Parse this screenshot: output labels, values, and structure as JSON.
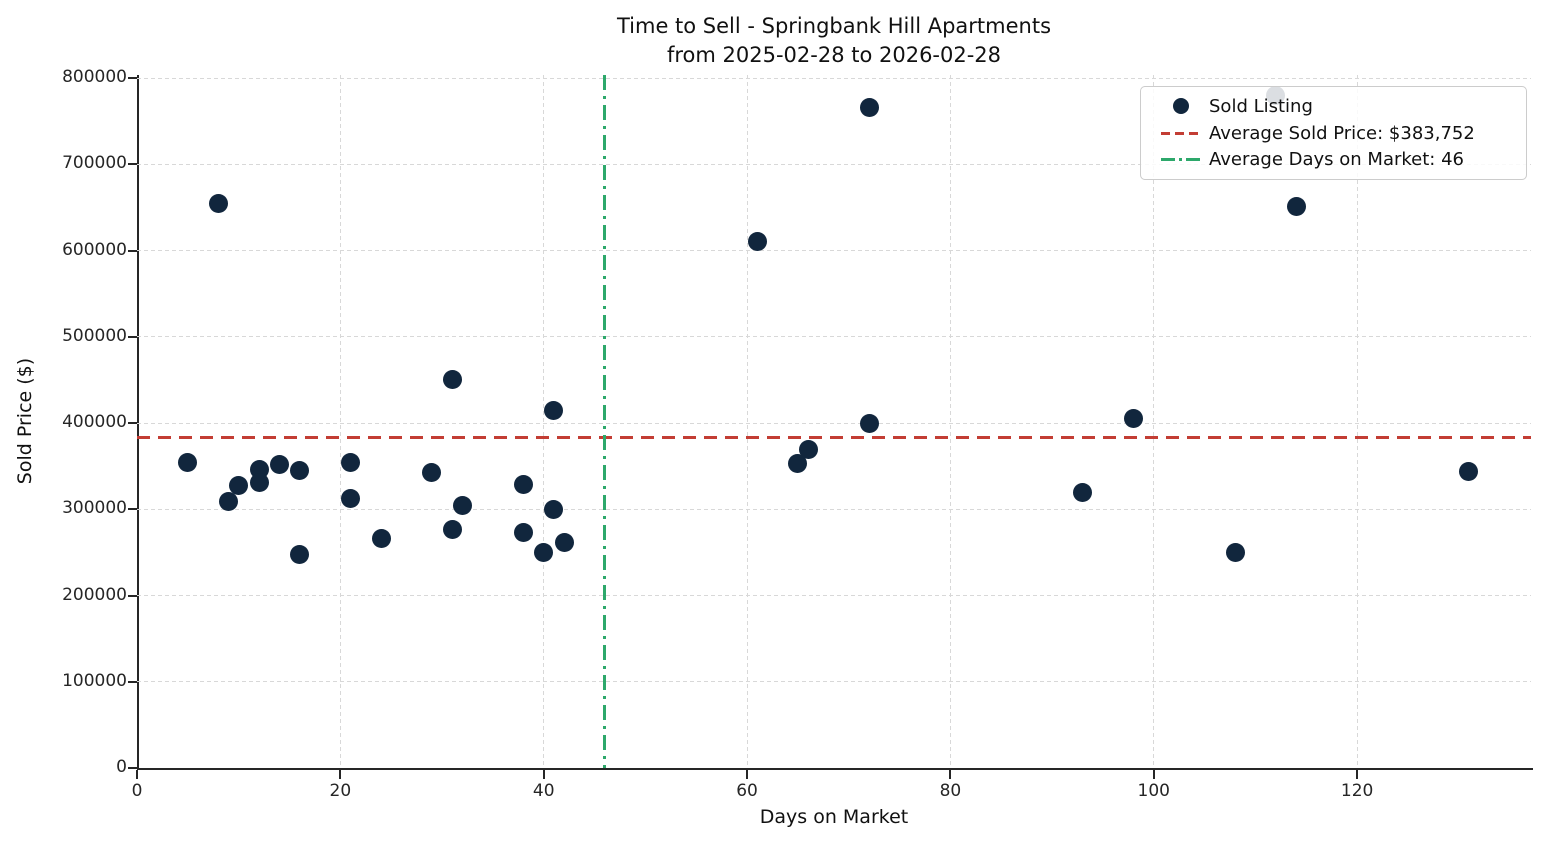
{
  "title": {
    "line1": "Time to Sell - Springbank Hill Apartments",
    "line2": "from 2025-02-28 to 2026-02-28"
  },
  "axes": {
    "xlabel": "Days on Market",
    "ylabel": "Sold Price ($)"
  },
  "legend": {
    "sold_listing": "Sold Listing",
    "avg_price": "Average Sold Price: $383,752",
    "avg_days": "Average Days on Market: 46"
  },
  "colors": {
    "dot": "#11263d",
    "avg_price_line": "#c33d34",
    "avg_days_line": "#2da86b",
    "grid": "#d8d8d8",
    "spine": "#262626"
  },
  "chart_data": {
    "type": "scatter",
    "title": "Time to Sell - Springbank Hill Apartments\nfrom 2025-02-28 to 2026-02-28",
    "xlabel": "Days on Market",
    "ylabel": "Sold Price ($)",
    "xlim": [
      0,
      137.1
    ],
    "ylim": [
      0,
      803500
    ],
    "x_ticks": [
      0,
      20,
      40,
      60,
      80,
      100,
      120
    ],
    "y_ticks": [
      0,
      100000,
      200000,
      300000,
      400000,
      500000,
      600000,
      700000,
      800000
    ],
    "grid": true,
    "legend_position": "upper right",
    "series_name": "Sold Listing",
    "points": [
      [
        5,
        354000
      ],
      [
        8,
        655000
      ],
      [
        9,
        309000
      ],
      [
        10,
        327000
      ],
      [
        12,
        346000
      ],
      [
        12,
        331000
      ],
      [
        14,
        352000
      ],
      [
        16,
        345000
      ],
      [
        16,
        248000
      ],
      [
        21,
        354000
      ],
      [
        21,
        313000
      ],
      [
        24,
        266000
      ],
      [
        29,
        343000
      ],
      [
        31,
        450000
      ],
      [
        31,
        276000
      ],
      [
        32,
        304000
      ],
      [
        38,
        329000
      ],
      [
        38,
        273000
      ],
      [
        40,
        250000
      ],
      [
        41,
        414000
      ],
      [
        41,
        300000
      ],
      [
        42,
        261000
      ],
      [
        61,
        611000
      ],
      [
        65,
        353000
      ],
      [
        66,
        369000
      ],
      [
        72,
        766000
      ],
      [
        72,
        400000
      ],
      [
        93,
        320000
      ],
      [
        98,
        405000
      ],
      [
        108,
        250000
      ],
      [
        112,
        780000
      ],
      [
        114,
        651000
      ],
      [
        131,
        344000
      ]
    ],
    "avg_sold_price": 383752,
    "avg_days_on_market": 46
  }
}
